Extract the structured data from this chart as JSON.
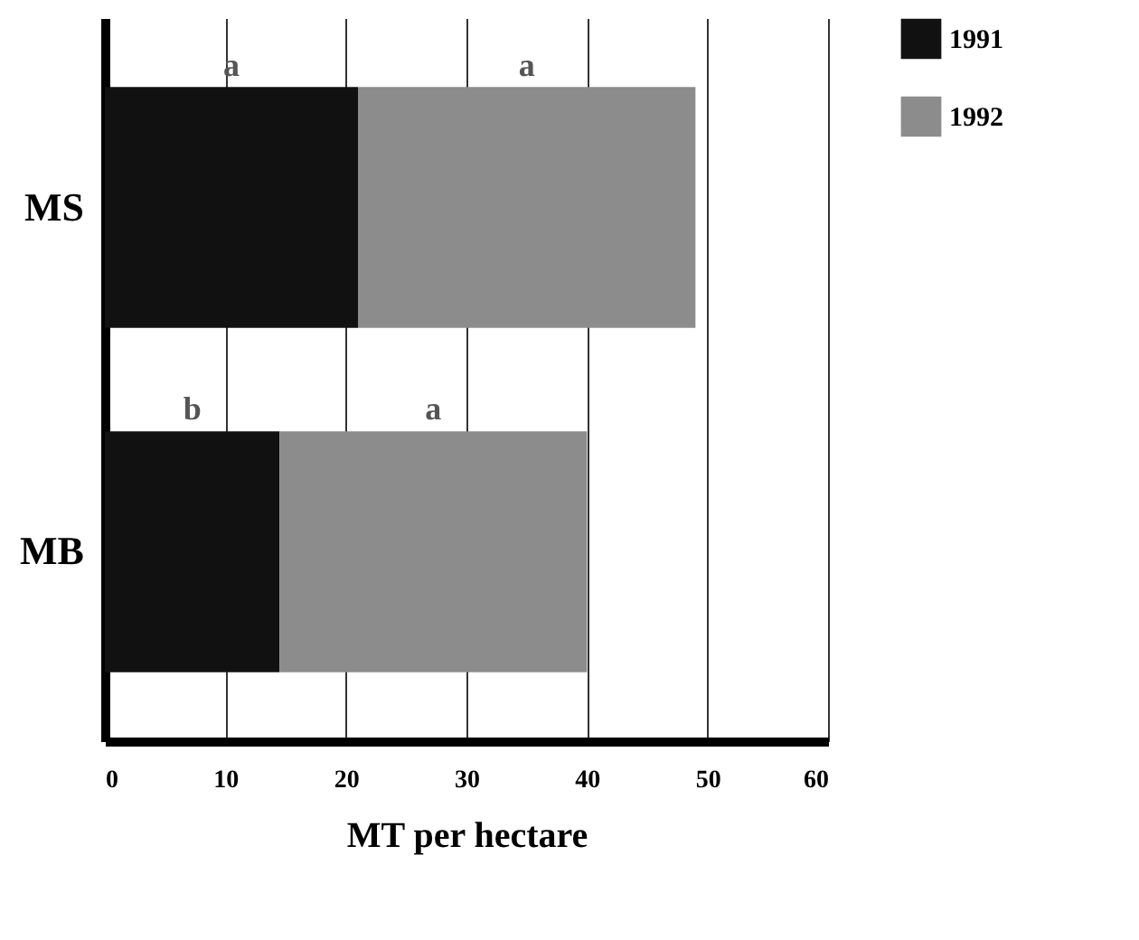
{
  "chart_data": {
    "type": "bar",
    "orientation": "horizontal",
    "stacked": true,
    "categories": [
      "MS",
      "MB"
    ],
    "series": [
      {
        "name": "1991",
        "color": "#111111",
        "values": [
          21,
          14.5
        ]
      },
      {
        "name": "1992",
        "color": "#8c8c8c",
        "values": [
          28,
          25.5
        ]
      }
    ],
    "xlim": [
      0,
      60
    ],
    "xticks": [
      0,
      10,
      20,
      30,
      40,
      50,
      60
    ],
    "xlabel": "MT per hectare",
    "grid": "x",
    "legend": "right",
    "annotations": [
      "a",
      "a",
      "b",
      "a"
    ]
  }
}
